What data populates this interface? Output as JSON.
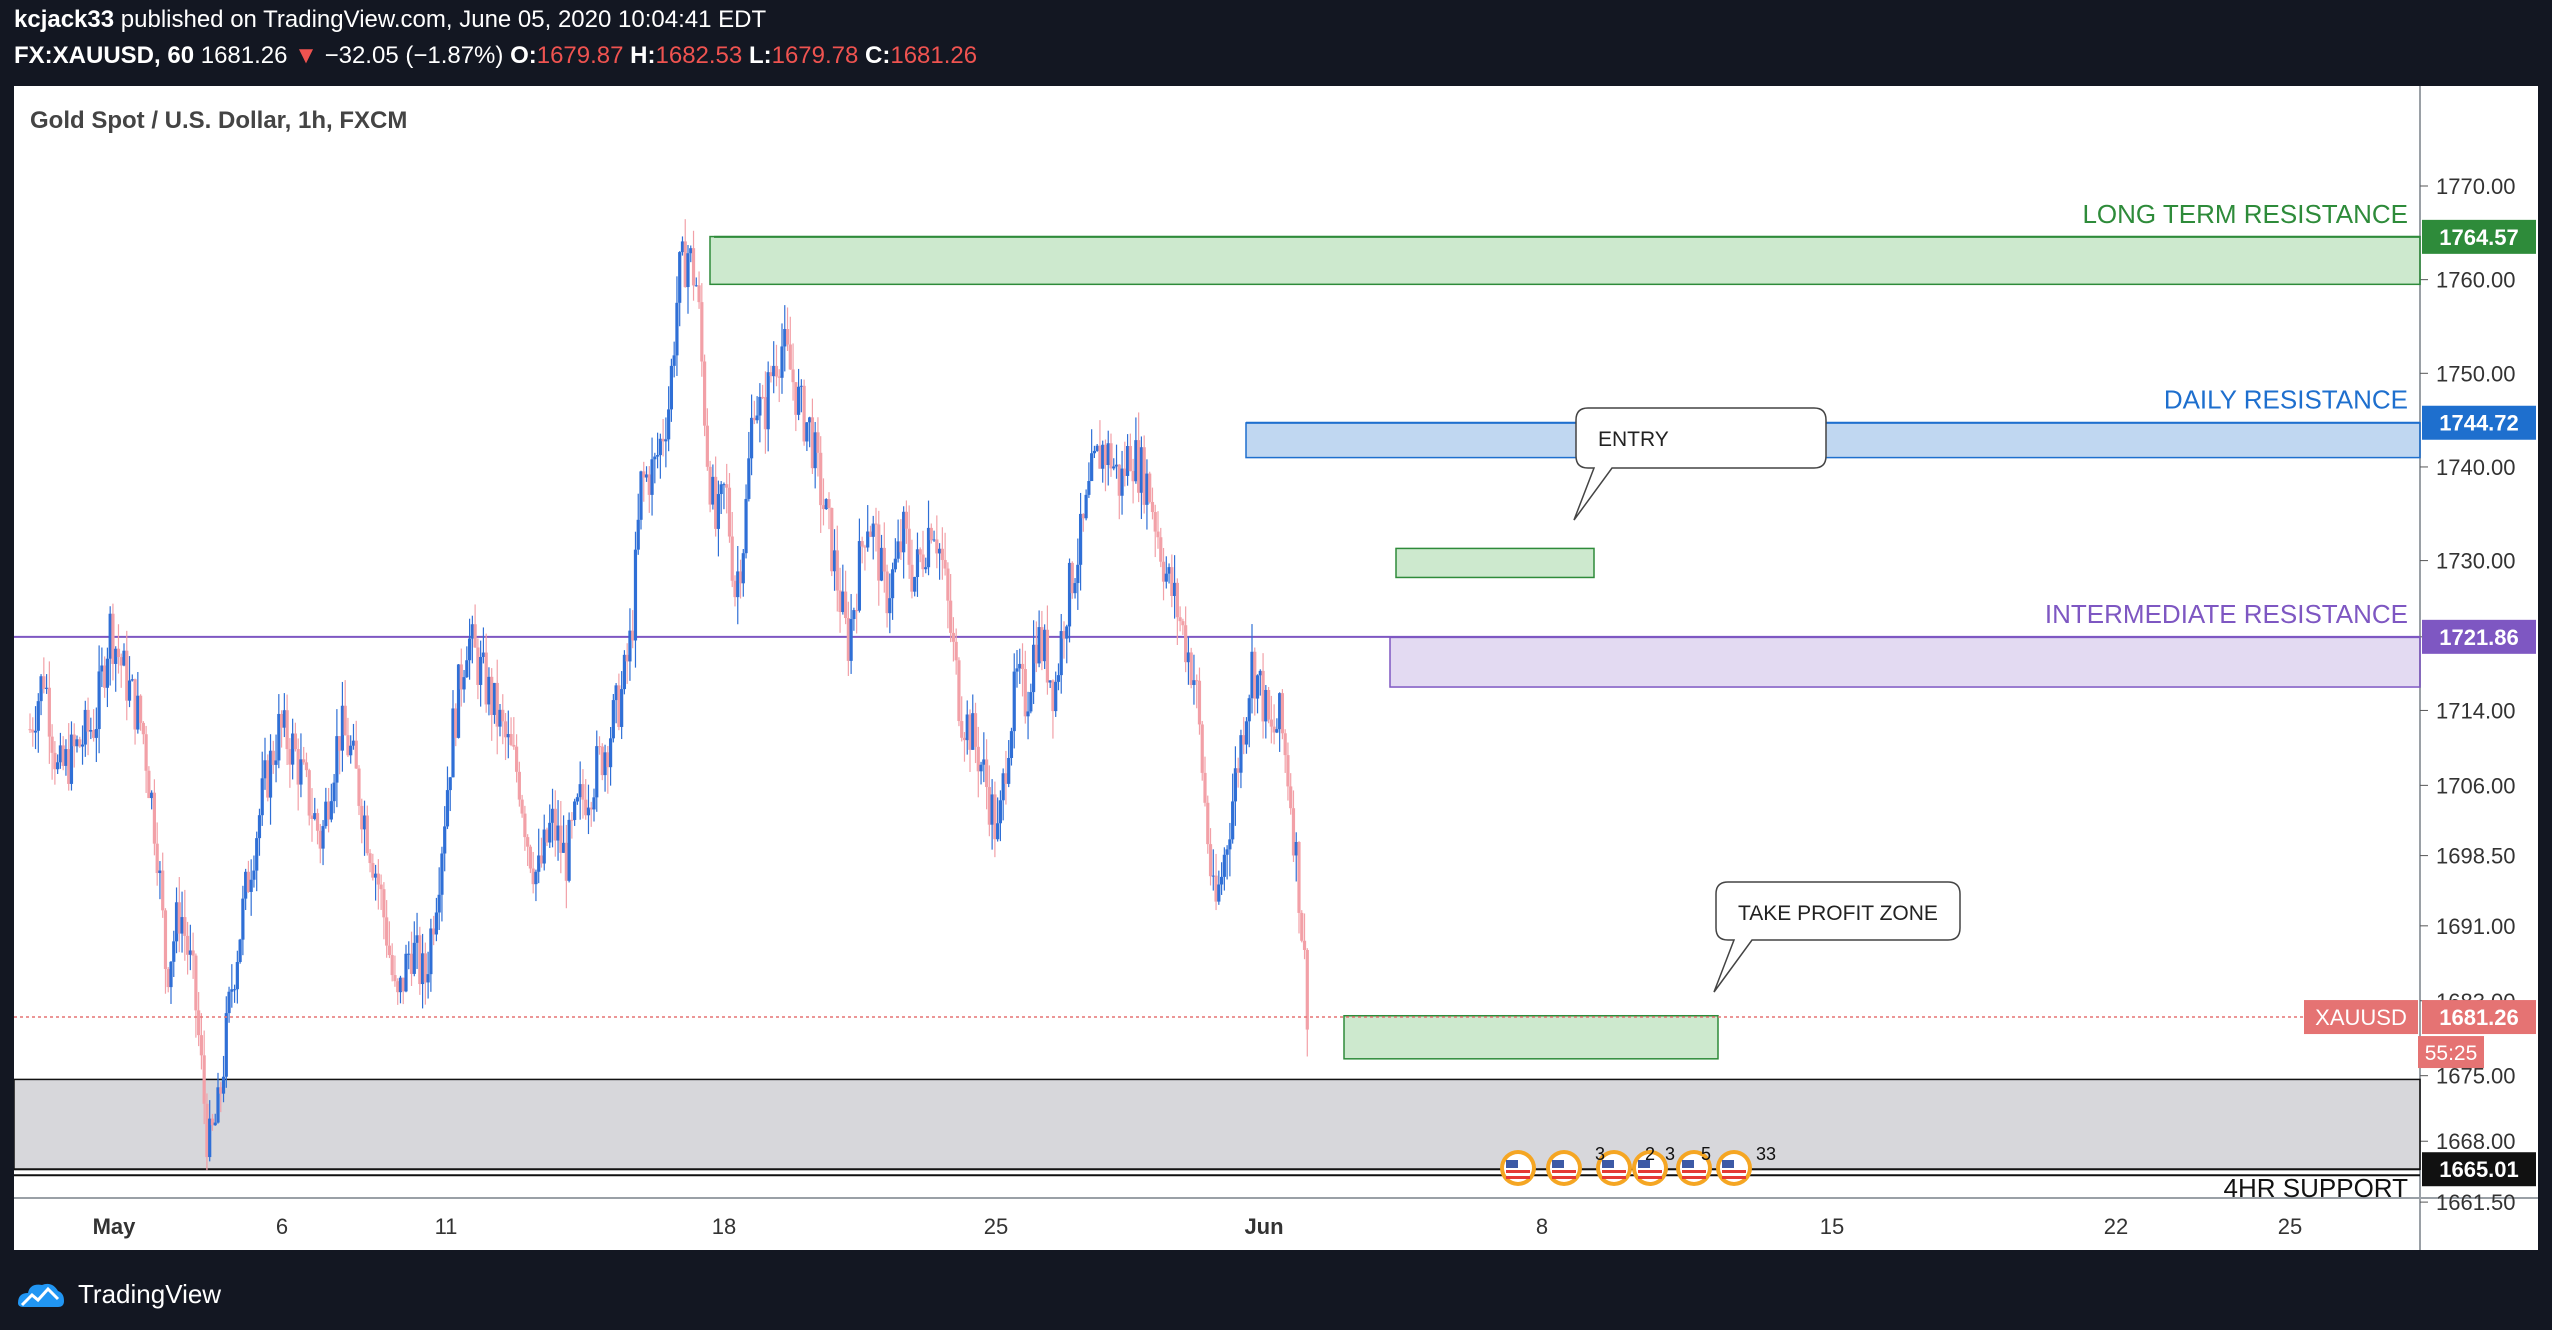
{
  "header": {
    "publisher": "kcjack33",
    "published_text": "published on TradingView.com, June 05, 2020 10:04:41 EDT",
    "symbol": "FX:XAUUSD, 60",
    "last": "1681.26",
    "arrow": "▼",
    "change": "−32.05 (−1.87%)",
    "o_label": "O:",
    "o": "1679.87",
    "h_label": "H:",
    "h": "1682.53",
    "l_label": "L:",
    "l": "1679.78",
    "c_label": "C:",
    "c": "1681.26"
  },
  "footer": {
    "brand": "TradingView"
  },
  "colors": {
    "bull": "#2f6fd6",
    "bear": "#f2a0a7",
    "green": "#2e8b3a",
    "blue": "#1e6fce",
    "purple": "#7e57c2",
    "price": "#e57373"
  },
  "chart_data": {
    "type": "candlestick",
    "title": "Gold Spot / U.S. Dollar, 1h, FXCM",
    "ylim": [
      1659,
      1775
    ],
    "y_ticks": [
      "1770.00",
      "1760.00",
      "1750.00",
      "1740.00",
      "1730.00",
      "1721.86",
      "1714.00",
      "1706.00",
      "1698.50",
      "1691.00",
      "1683.00",
      "1675.00",
      "1668.00",
      "1661.50"
    ],
    "x_ticks": [
      "May",
      "6",
      "11",
      "18",
      "25",
      "Jun",
      "8",
      "15",
      "22",
      "25"
    ],
    "series_path": [
      [
        0,
        1712
      ],
      [
        3,
        1718
      ],
      [
        6,
        1707
      ],
      [
        10,
        1710
      ],
      [
        14,
        1713
      ],
      [
        17,
        1723
      ],
      [
        20,
        1718
      ],
      [
        24,
        1712
      ],
      [
        27,
        1700
      ],
      [
        29,
        1686
      ],
      [
        32,
        1693
      ],
      [
        35,
        1684
      ],
      [
        38,
        1667
      ],
      [
        40,
        1671
      ],
      [
        43,
        1685
      ],
      [
        47,
        1698
      ],
      [
        50,
        1706
      ],
      [
        53,
        1712
      ],
      [
        56,
        1710
      ],
      [
        59,
        1705
      ],
      [
        62,
        1700
      ],
      [
        64,
        1707
      ],
      [
        66,
        1712
      ],
      [
        68,
        1710
      ],
      [
        71,
        1703
      ],
      [
        74,
        1696
      ],
      [
        76,
        1690
      ],
      [
        78,
        1682
      ],
      [
        81,
        1689
      ],
      [
        84,
        1685
      ],
      [
        87,
        1697
      ],
      [
        90,
        1712
      ],
      [
        93,
        1722
      ],
      [
        96,
        1718
      ],
      [
        99,
        1714
      ],
      [
        101,
        1711
      ],
      [
        104,
        1707
      ],
      [
        106,
        1700
      ],
      [
        108,
        1696
      ],
      [
        111,
        1702
      ],
      [
        114,
        1698
      ],
      [
        117,
        1704
      ],
      [
        120,
        1707
      ],
      [
        123,
        1711
      ],
      [
        126,
        1716
      ],
      [
        128,
        1722
      ],
      [
        130,
        1738
      ],
      [
        133,
        1740
      ],
      [
        136,
        1747
      ],
      [
        138,
        1760
      ],
      [
        140,
        1763
      ],
      [
        142,
        1759
      ],
      [
        144,
        1742
      ],
      [
        146,
        1733
      ],
      [
        148,
        1738
      ],
      [
        150,
        1727
      ],
      [
        152,
        1733
      ],
      [
        154,
        1748
      ],
      [
        156,
        1745
      ],
      [
        158,
        1751
      ],
      [
        160,
        1753
      ],
      [
        162,
        1750
      ],
      [
        164,
        1746
      ],
      [
        166,
        1744
      ],
      [
        168,
        1738
      ],
      [
        170,
        1733
      ],
      [
        172,
        1727
      ],
      [
        174,
        1721
      ],
      [
        176,
        1728
      ],
      [
        178,
        1735
      ],
      [
        180,
        1732
      ],
      [
        182,
        1726
      ],
      [
        184,
        1729
      ],
      [
        186,
        1733
      ],
      [
        188,
        1728
      ],
      [
        190,
        1731
      ],
      [
        192,
        1735
      ],
      [
        194,
        1730
      ],
      [
        196,
        1722
      ],
      [
        198,
        1714
      ],
      [
        200,
        1712
      ],
      [
        202,
        1709
      ],
      [
        204,
        1705
      ],
      [
        206,
        1700
      ],
      [
        208,
        1711
      ],
      [
        210,
        1717
      ],
      [
        212,
        1715
      ],
      [
        214,
        1722
      ],
      [
        216,
        1720
      ],
      [
        218,
        1716
      ],
      [
        220,
        1724
      ],
      [
        222,
        1729
      ],
      [
        224,
        1733
      ],
      [
        226,
        1739
      ],
      [
        228,
        1742
      ],
      [
        230,
        1741
      ],
      [
        232,
        1738
      ],
      [
        234,
        1742
      ],
      [
        236,
        1740
      ],
      [
        238,
        1738
      ],
      [
        240,
        1733
      ],
      [
        242,
        1728
      ],
      [
        244,
        1725
      ],
      [
        246,
        1721
      ],
      [
        248,
        1717
      ],
      [
        250,
        1704
      ],
      [
        252,
        1692
      ],
      [
        254,
        1698
      ],
      [
        256,
        1705
      ],
      [
        258,
        1712
      ],
      [
        260,
        1719
      ],
      [
        262,
        1716
      ],
      [
        264,
        1711
      ],
      [
        266,
        1713
      ],
      [
        268,
        1706
      ],
      [
        270,
        1695
      ],
      [
        272,
        1681
      ]
    ],
    "levels": [
      {
        "name": "LONG TERM RESISTANCE",
        "price": 1764.57,
        "price_label": "1764.57",
        "zone": [
          1759.5,
          1764.6
        ]
      },
      {
        "name": "DAILY RESISTANCE",
        "price": 1744.72,
        "price_label": "1744.72",
        "zone": [
          1741.0,
          1744.7
        ]
      },
      {
        "name": "INTERMEDIATE RESISTANCE",
        "price": 1721.86,
        "price_label": "1721.86",
        "zone": [
          1716.5,
          1721.8
        ]
      },
      {
        "name": "4HR SUPPORT",
        "price": 1665.01,
        "price_label": "1665.01",
        "zone": [
          1665.0,
          1674.6
        ]
      }
    ],
    "boxes": [
      {
        "name": "ENTRY",
        "zone": [
          1728.2,
          1731.3
        ]
      },
      {
        "name": "TAKE PROFIT ZONE",
        "zone": [
          1676.8,
          1681.4
        ]
      }
    ],
    "current": {
      "symbol": "XAUUSD",
      "price": 1681.26,
      "label": "1681.26",
      "countdown": "55:25"
    },
    "event_counts": [
      "3",
      "2",
      "3",
      "5",
      "33"
    ]
  }
}
